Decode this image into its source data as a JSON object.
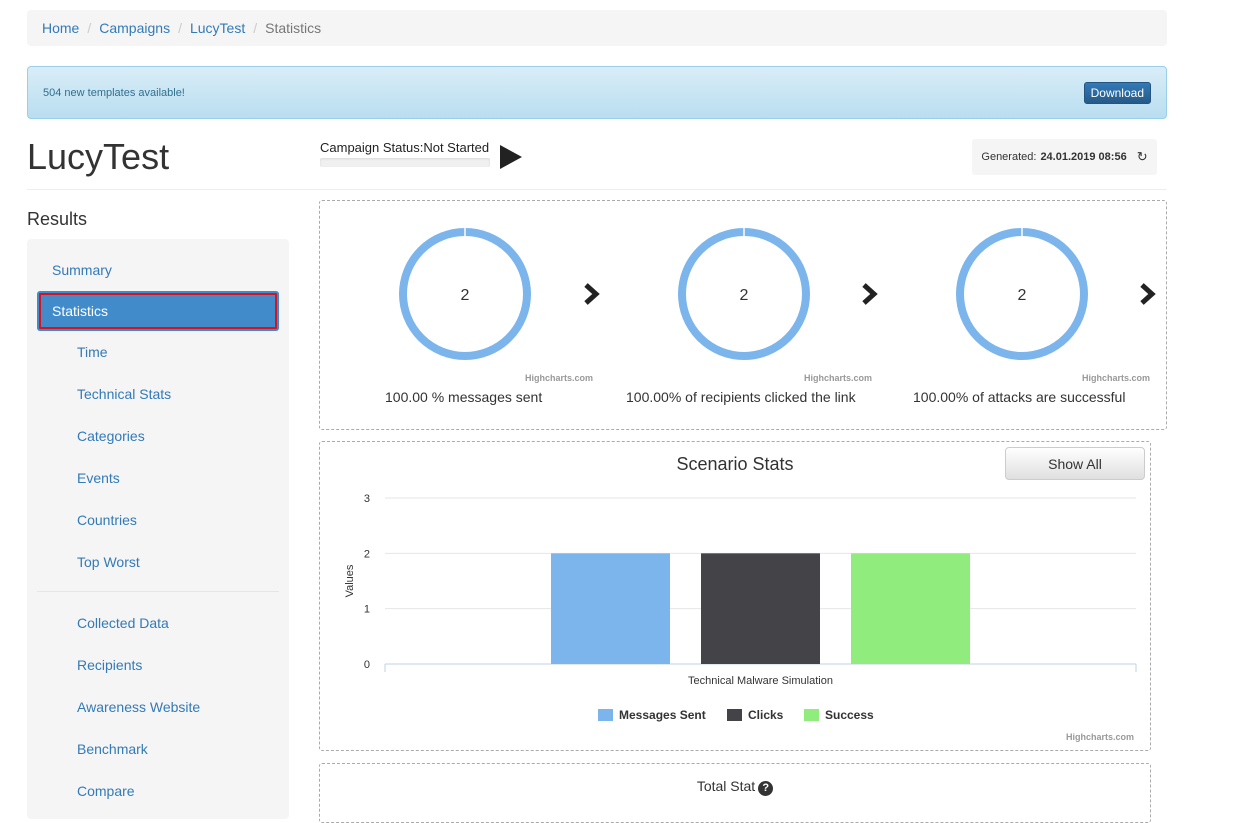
{
  "breadcrumb": {
    "items": [
      "Home",
      "Campaigns",
      "LucyTest"
    ],
    "active": "Statistics",
    "separator": "/"
  },
  "alert": {
    "message": "504 new templates available!",
    "button": "Download"
  },
  "page": {
    "title": "LucyTest"
  },
  "campaign": {
    "status_label": "Campaign Status:",
    "status_value": "Not Started"
  },
  "generated": {
    "label": "Generated:",
    "value": "24.01.2019 08:56"
  },
  "sidebar": {
    "heading": "Results",
    "summary": "Summary",
    "active": "Statistics",
    "sub_items": [
      "Time",
      "Technical Stats",
      "Categories",
      "Events",
      "Countries",
      "Top Worst"
    ],
    "items_after_divider": [
      "Collected Data",
      "Recipients",
      "Awareness Website",
      "Benchmark",
      "Compare"
    ]
  },
  "donuts": [
    {
      "value": "2",
      "label": "100.00 % messages sent",
      "credit": "Highcharts.com"
    },
    {
      "value": "2",
      "label": "100.00% of recipients clicked the link",
      "credit": "Highcharts.com"
    },
    {
      "value": "2",
      "label": "100.00% of attacks are successful",
      "credit": "Highcharts.com"
    }
  ],
  "colors": {
    "accent": "#428bca",
    "donut": "#7cb5ec",
    "clicks": "#434348",
    "success": "#90ed7d"
  },
  "scenario": {
    "show_all": "Show All",
    "credit": "Highcharts.com"
  },
  "chart_data": {
    "type": "bar",
    "title": "Scenario Stats",
    "ylabel": "Values",
    "xlabel": "",
    "categories": [
      "Technical Malware Simulation"
    ],
    "series": [
      {
        "name": "Messages Sent",
        "values": [
          2
        ],
        "color": "#7cb5ec"
      },
      {
        "name": "Clicks",
        "values": [
          2
        ],
        "color": "#434348"
      },
      {
        "name": "Success",
        "values": [
          2
        ],
        "color": "#90ed7d"
      }
    ],
    "ylim": [
      0,
      3
    ],
    "yticks": [
      "0",
      "1",
      "2",
      "3"
    ],
    "grid": true,
    "legend": "bottom"
  },
  "total_stat": {
    "title": "Total Stat",
    "help_icon": "?"
  }
}
